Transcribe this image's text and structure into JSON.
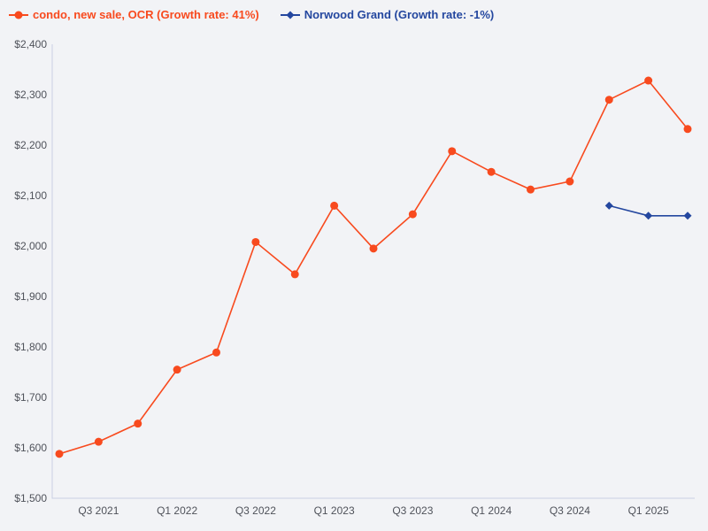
{
  "page": {
    "background_color": "#f2f3f6",
    "axis_color": "#c9cfe4",
    "tick_label_color": "#4f525a"
  },
  "legend": {
    "items": [
      {
        "label": "condo, new sale, OCR (Growth rate: 41%)",
        "color": "#f84a1e",
        "marker": "circle"
      },
      {
        "label": "Norwood Grand (Growth rate: -1%)",
        "color": "#24479f",
        "marker": "diamond"
      }
    ]
  },
  "chart_data": {
    "type": "line",
    "title": "",
    "xlabel": "",
    "ylabel": "",
    "x": [
      "Q2 2021",
      "Q3 2021",
      "Q4 2021",
      "Q1 2022",
      "Q2 2022",
      "Q3 2022",
      "Q4 2022",
      "Q1 2023",
      "Q2 2023",
      "Q3 2023",
      "Q4 2023",
      "Q1 2024",
      "Q2 2024",
      "Q3 2024",
      "Q4 2024",
      "Q1 2025",
      "Q2 2025"
    ],
    "x_tick_labels": [
      "Q3 2021",
      "Q1 2022",
      "Q3 2022",
      "Q1 2023",
      "Q3 2023",
      "Q1 2024",
      "Q3 2024",
      "Q1 2025"
    ],
    "ylim": [
      1500,
      2400
    ],
    "y_tick_step": 100,
    "y_tick_prefix": "$",
    "grid": false,
    "legend_position": "top-left",
    "series": [
      {
        "name": "condo, new sale, OCR",
        "growth_rate": "41%",
        "color": "#f84a1e",
        "marker": "circle",
        "values": [
          1588,
          1612,
          1648,
          1755,
          1789,
          2008,
          1944,
          2080,
          1995,
          2063,
          2188,
          2147,
          2112,
          2128,
          2290,
          2328,
          2232
        ]
      },
      {
        "name": "Norwood Grand",
        "growth_rate": "-1%",
        "color": "#24479f",
        "marker": "diamond",
        "values": [
          null,
          null,
          null,
          null,
          null,
          null,
          null,
          null,
          null,
          null,
          null,
          null,
          null,
          null,
          2080,
          2060,
          2060
        ]
      }
    ]
  }
}
